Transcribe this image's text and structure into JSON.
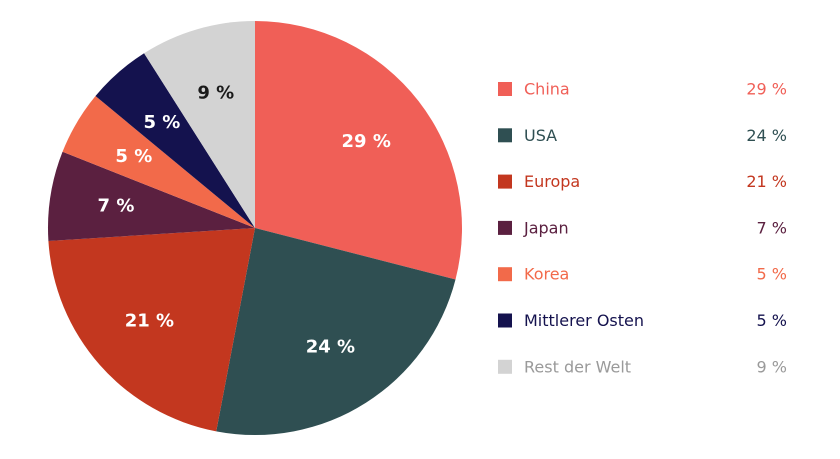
{
  "chart_data": {
    "type": "pie",
    "title": "",
    "legend_position": "right",
    "slices": [
      {
        "label": "China",
        "value": 29,
        "value_label": "29 %",
        "color": "#F05F57",
        "label_color": "#FFFFFF",
        "legend_text_color": "#F05F57"
      },
      {
        "label": "USA",
        "value": 24,
        "value_label": "24 %",
        "color": "#2F4F52",
        "label_color": "#FFFFFF",
        "legend_text_color": "#2F4F52"
      },
      {
        "label": "Europa",
        "value": 21,
        "value_label": "21 %",
        "color": "#C3371F",
        "label_color": "#FFFFFF",
        "legend_text_color": "#C3371F"
      },
      {
        "label": "Japan",
        "value": 7,
        "value_label": "7 %",
        "color": "#5B2040",
        "label_color": "#FFFFFF",
        "legend_text_color": "#5B2040"
      },
      {
        "label": "Korea",
        "value": 5,
        "value_label": "5 %",
        "color": "#F26A4A",
        "label_color": "#FFFFFF",
        "legend_text_color": "#F26A4A"
      },
      {
        "label": "Mittlerer Osten",
        "value": 5,
        "value_label": "5 %",
        "color": "#14124E",
        "label_color": "#FFFFFF",
        "legend_text_color": "#14124E"
      },
      {
        "label": "Rest der Welt",
        "value": 9,
        "value_label": "9 %",
        "color": "#D3D3D3",
        "label_color": "#1A1A1A",
        "legend_text_color": "#9A9A9A"
      }
    ]
  }
}
